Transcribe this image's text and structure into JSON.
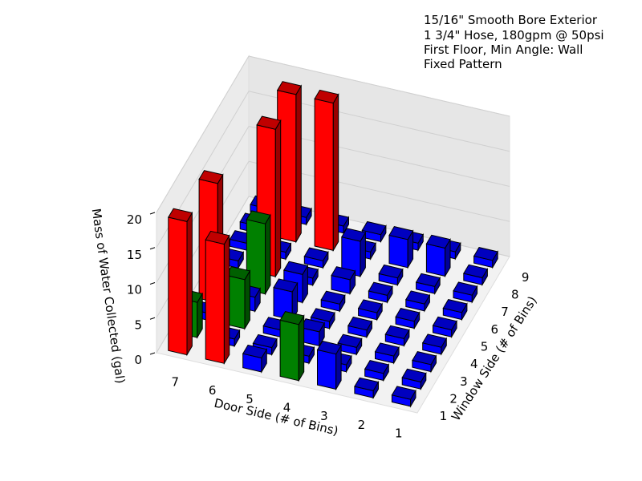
{
  "chart_data": {
    "type": "bar3d",
    "title_lines": [
      "15/16\" Smooth Bore Exterior",
      "1 3/4\" Hose, 180gpm @ 50psi",
      "First Floor, Min Angle: Wall",
      "Fixed Pattern"
    ],
    "x_label": "Door Side (# of Bins)",
    "y_label": "Window Side (# of Bins)",
    "z_label": "Mass of Water Collected (gal)",
    "door_side": [
      "1",
      "2",
      "3",
      "4",
      "5",
      "6",
      "7"
    ],
    "window_side": [
      "1",
      "2",
      "3",
      "4",
      "5",
      "6",
      "7",
      "8",
      "9"
    ],
    "values": [
      [
        1,
        1,
        1,
        1,
        1,
        1,
        1,
        1,
        1
      ],
      [
        1,
        1,
        1,
        1,
        1,
        1,
        1,
        4,
        1
      ],
      [
        5,
        1,
        1,
        1,
        1,
        1,
        1,
        4,
        1
      ],
      [
        8,
        1,
        2,
        1,
        1,
        2,
        5,
        1,
        1
      ],
      [
        2,
        1,
        1,
        4,
        4,
        1,
        1,
        21,
        1
      ],
      [
        17,
        1,
        7,
        2,
        10,
        21,
        1,
        21,
        1
      ],
      [
        19,
        5,
        1,
        17,
        1,
        1,
        1,
        1,
        1
      ]
    ],
    "colors": [
      [
        "blue",
        "blue",
        "blue",
        "blue",
        "blue",
        "blue",
        "blue",
        "blue",
        "blue"
      ],
      [
        "blue",
        "blue",
        "blue",
        "blue",
        "blue",
        "blue",
        "blue",
        "blue",
        "blue"
      ],
      [
        "blue",
        "blue",
        "blue",
        "blue",
        "blue",
        "blue",
        "blue",
        "blue",
        "blue"
      ],
      [
        "green",
        "blue",
        "blue",
        "blue",
        "blue",
        "blue",
        "blue",
        "blue",
        "blue"
      ],
      [
        "blue",
        "blue",
        "blue",
        "blue",
        "blue",
        "blue",
        "blue",
        "red",
        "blue"
      ],
      [
        "red",
        "blue",
        "green",
        "blue",
        "green",
        "red",
        "blue",
        "red",
        "blue"
      ],
      [
        "red",
        "green",
        "blue",
        "red",
        "blue",
        "blue",
        "blue",
        "blue",
        "blue"
      ]
    ],
    "zlim": [
      0,
      20
    ],
    "zticks": [
      0,
      5,
      10,
      15,
      20
    ],
    "grid": true
  }
}
